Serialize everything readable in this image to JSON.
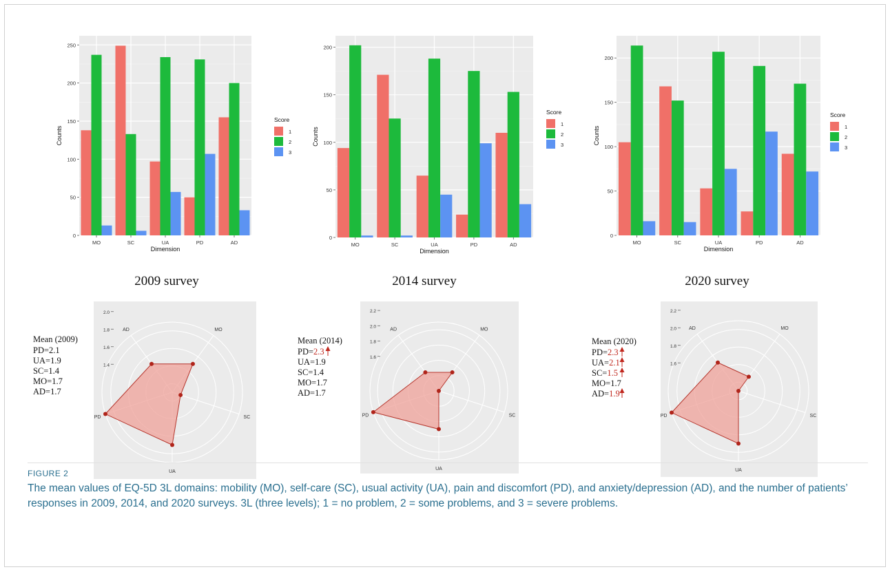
{
  "figure": {
    "label": "FIGURE 2",
    "caption": "The mean values of EQ-5D 3L domains: mobility (MO), self-care (SC), usual activity (UA), pain and discomfort (PD), and anxiety/depression (AD), and the number of patients’ responses in 2009, 2014, and 2020 surveys. 3L (three levels); 1 = no problem, 2 = some problems, and 3 = severe problems."
  },
  "colors": {
    "score1": "#F07068",
    "score2": "#1DBA3C",
    "score3": "#5C93F2",
    "radar_fill": "#EFA19A",
    "radar_line": "#B5352C",
    "radar_point": "#B0241A",
    "panel_bg": "#EBEBEB",
    "highlight": "#C0271D"
  },
  "chart_data": [
    {
      "type": "bar",
      "survey_title": "2009 survey",
      "categories": [
        "MO",
        "SC",
        "UA",
        "PD",
        "AD"
      ],
      "series": [
        {
          "name": "1",
          "values": [
            138,
            249,
            97,
            50,
            155
          ]
        },
        {
          "name": "2",
          "values": [
            237,
            133,
            234,
            231,
            200
          ]
        },
        {
          "name": "3",
          "values": [
            13,
            6,
            57,
            107,
            33
          ]
        }
      ],
      "xlabel": "Dimension",
      "ylabel": "Counts",
      "yticks": [
        0,
        50,
        100,
        150,
        200,
        250
      ],
      "ylim": [
        0,
        262
      ],
      "legend_title": "Score",
      "legend_position": "right"
    },
    {
      "type": "bar",
      "survey_title": "2014 survey",
      "categories": [
        "MO",
        "SC",
        "UA",
        "PD",
        "AD"
      ],
      "series": [
        {
          "name": "1",
          "values": [
            94,
            171,
            65,
            24,
            110
          ]
        },
        {
          "name": "2",
          "values": [
            202,
            125,
            188,
            175,
            153
          ]
        },
        {
          "name": "3",
          "values": [
            2,
            2,
            45,
            99,
            35
          ]
        }
      ],
      "xlabel": "Dimension",
      "ylabel": "Counts",
      "yticks": [
        0,
        50,
        100,
        150,
        200
      ],
      "ylim": [
        0,
        212
      ],
      "legend_title": "Score",
      "legend_position": "right"
    },
    {
      "type": "bar",
      "survey_title": "2020 survey",
      "categories": [
        "MO",
        "SC",
        "UA",
        "PD",
        "AD"
      ],
      "series": [
        {
          "name": "1",
          "values": [
            105,
            168,
            53,
            27,
            92
          ]
        },
        {
          "name": "2",
          "values": [
            214,
            152,
            207,
            191,
            171
          ]
        },
        {
          "name": "3",
          "values": [
            16,
            15,
            75,
            117,
            72
          ]
        }
      ],
      "xlabel": "Dimension",
      "ylabel": "Counts",
      "yticks": [
        0,
        50,
        100,
        150,
        200
      ],
      "ylim": [
        0,
        225
      ],
      "legend_title": "Score",
      "legend_position": "right"
    },
    {
      "type": "radar",
      "axes": [
        "MO",
        "SC",
        "UA",
        "PD",
        "AD"
      ],
      "values": {
        "MO": 1.7,
        "SC": 1.4,
        "UA": 1.9,
        "PD": 2.1,
        "AD": 1.7
      },
      "rticks": [
        1.4,
        1.6,
        1.8,
        2.0
      ],
      "rticks_text": [
        "1.4",
        "1.6",
        "1.8",
        "2.0"
      ],
      "rlim": [
        1.3,
        2.1
      ],
      "legend_title": "Mean (2009)",
      "legend": [
        {
          "key": "PD",
          "text": "PD=",
          "value": "2.1",
          "up": false
        },
        {
          "key": "UA",
          "text": "UA=",
          "value": "1.9",
          "up": false
        },
        {
          "key": "SC",
          "text": "SC=",
          "value": "1.4",
          "up": false
        },
        {
          "key": "MO",
          "text": "MO=",
          "value": "1.7",
          "up": false
        },
        {
          "key": "AD",
          "text": "AD=",
          "value": "1.7",
          "up": false
        }
      ]
    },
    {
      "type": "radar",
      "axes": [
        "MO",
        "SC",
        "UA",
        "PD",
        "AD"
      ],
      "values": {
        "MO": 1.7,
        "SC": 1.4,
        "UA": 1.9,
        "PD": 2.3,
        "AD": 1.7
      },
      "rticks": [
        1.6,
        1.8,
        2.0,
        2.2
      ],
      "rticks_text": [
        "1.6",
        "1.8",
        "2.0",
        "2.2"
      ],
      "rlim": [
        1.4,
        2.3
      ],
      "legend_title": "Mean (2014)",
      "legend": [
        {
          "key": "PD",
          "text": "PD=",
          "value": "2.3",
          "up": true
        },
        {
          "key": "UA",
          "text": "UA=",
          "value": "1.9",
          "up": false
        },
        {
          "key": "SC",
          "text": "SC=",
          "value": "1.4",
          "up": false
        },
        {
          "key": "MO",
          "text": "MO=",
          "value": "1.7",
          "up": false
        },
        {
          "key": "AD",
          "text": "AD=",
          "value": "1.7",
          "up": false
        }
      ]
    },
    {
      "type": "radar",
      "axes": [
        "MO",
        "SC",
        "UA",
        "PD",
        "AD"
      ],
      "values": {
        "MO": 1.7,
        "SC": 1.5,
        "UA": 2.1,
        "PD": 2.3,
        "AD": 1.9
      },
      "rticks": [
        1.6,
        1.8,
        2.0,
        2.2
      ],
      "rticks_text": [
        "1.6",
        "1.8",
        "2.0",
        "2.2"
      ],
      "rlim": [
        1.5,
        2.3
      ],
      "legend_title": "Mean (2020)",
      "legend": [
        {
          "key": "PD",
          "text": "PD=",
          "value": "2.3",
          "up": true
        },
        {
          "key": "UA",
          "text": "UA=",
          "value": "2.1",
          "up": true
        },
        {
          "key": "SC",
          "text": "SC=",
          "value": "1.5",
          "up": true
        },
        {
          "key": "MO",
          "text": "MO=",
          "value": "1.7",
          "up": false
        },
        {
          "key": "AD",
          "text": "AD=",
          "value": "1.9",
          "up": true
        }
      ]
    }
  ]
}
